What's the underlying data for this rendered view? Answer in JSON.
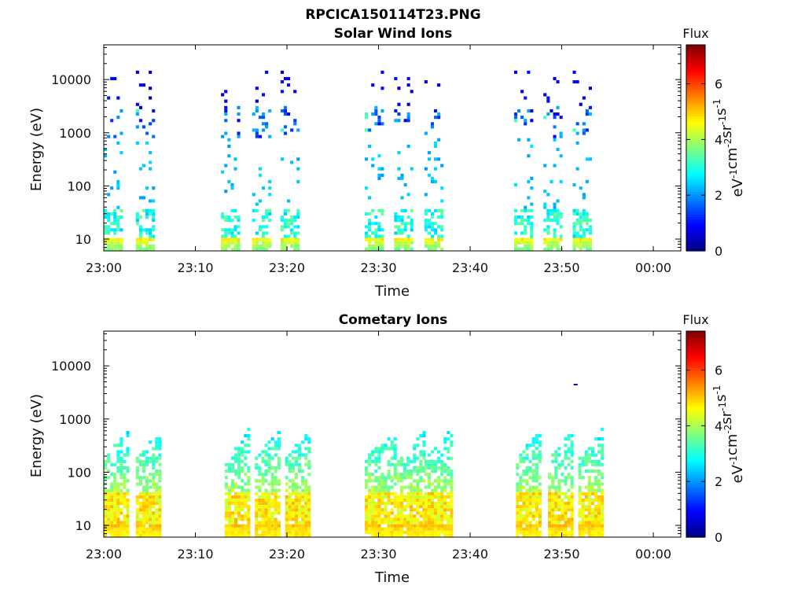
{
  "figure": {
    "title": "RPCICA150114T23.PNG"
  },
  "colors": {
    "frame": "#000000",
    "colormap": "jet"
  },
  "chart_data": [
    {
      "type": "heatmap",
      "title": "Solar Wind Ions",
      "xlabel": "Time",
      "ylabel": "Energy (eV)",
      "yscale": "log",
      "xticks": [
        "23:00",
        "23:10",
        "23:20",
        "23:30",
        "23:40",
        "23:50",
        "00:00"
      ],
      "yticks": [
        "10",
        "100",
        "1000",
        "10000"
      ],
      "xlim_minutes": [
        0,
        63
      ],
      "ylim": [
        6,
        45000
      ],
      "colorbar": {
        "title": "Flux",
        "label": "eV-1cm-2sr-1s-1",
        "ticks": [
          "0",
          "2",
          "4",
          "6"
        ],
        "range": [
          0,
          7.4
        ]
      },
      "bursts_minutes": [
        [
          0.0,
          1.8
        ],
        [
          3.5,
          5.3
        ],
        [
          12.8,
          14.8
        ],
        [
          16.2,
          18.2
        ],
        [
          19.3,
          21.4
        ],
        [
          28.5,
          30.5
        ],
        [
          31.7,
          33.7
        ],
        [
          35.0,
          37.0
        ],
        [
          44.8,
          46.8
        ],
        [
          48.0,
          50.0
        ],
        [
          51.2,
          53.2
        ]
      ],
      "profile": "solar"
    },
    {
      "type": "heatmap",
      "title": "Cometary Ions",
      "xlabel": "Time",
      "ylabel": "Energy (eV)",
      "yscale": "log",
      "xticks": [
        "23:00",
        "23:10",
        "23:20",
        "23:30",
        "23:40",
        "23:50",
        "00:00"
      ],
      "yticks": [
        "10",
        "100",
        "1000",
        "10000"
      ],
      "xlim_minutes": [
        0,
        63
      ],
      "ylim": [
        6,
        45000
      ],
      "colorbar": {
        "title": "Flux",
        "label": "eV-1cm-2sr-1s-1",
        "ticks": [
          "0",
          "2",
          "4",
          "6"
        ],
        "range": [
          0,
          7.4
        ]
      },
      "bursts_minutes": [
        [
          0.0,
          2.8
        ],
        [
          3.5,
          6.1
        ],
        [
          13.2,
          15.8
        ],
        [
          16.5,
          19.2
        ],
        [
          19.8,
          22.6
        ],
        [
          28.5,
          31.8
        ],
        [
          32.0,
          34.9
        ],
        [
          35.0,
          38.0
        ],
        [
          45.0,
          47.8
        ],
        [
          48.5,
          51.3
        ],
        [
          51.8,
          54.3
        ]
      ],
      "profile": "cometary"
    }
  ]
}
